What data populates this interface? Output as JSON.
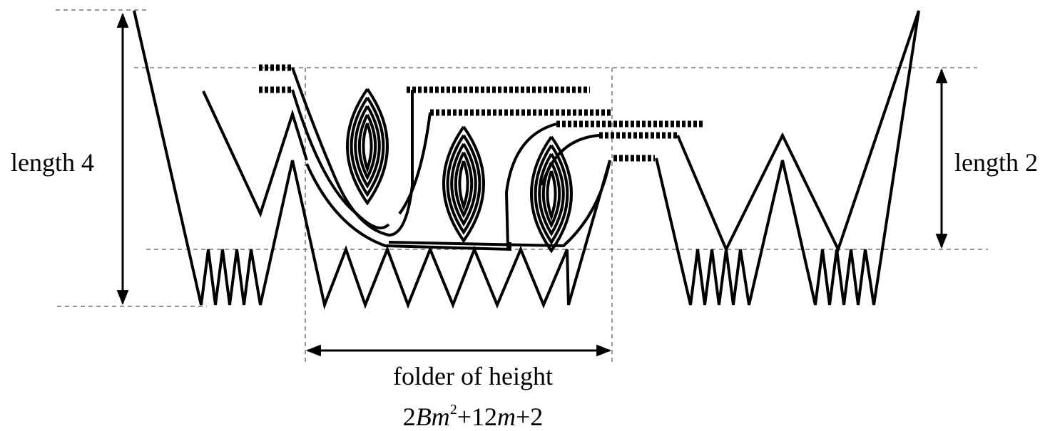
{
  "labels": {
    "left": "length 4",
    "right": "length 2",
    "bottom": "folder of height"
  },
  "formula": [
    "2",
    "Bm",
    "2",
    "+12",
    "m",
    "+2"
  ]
}
